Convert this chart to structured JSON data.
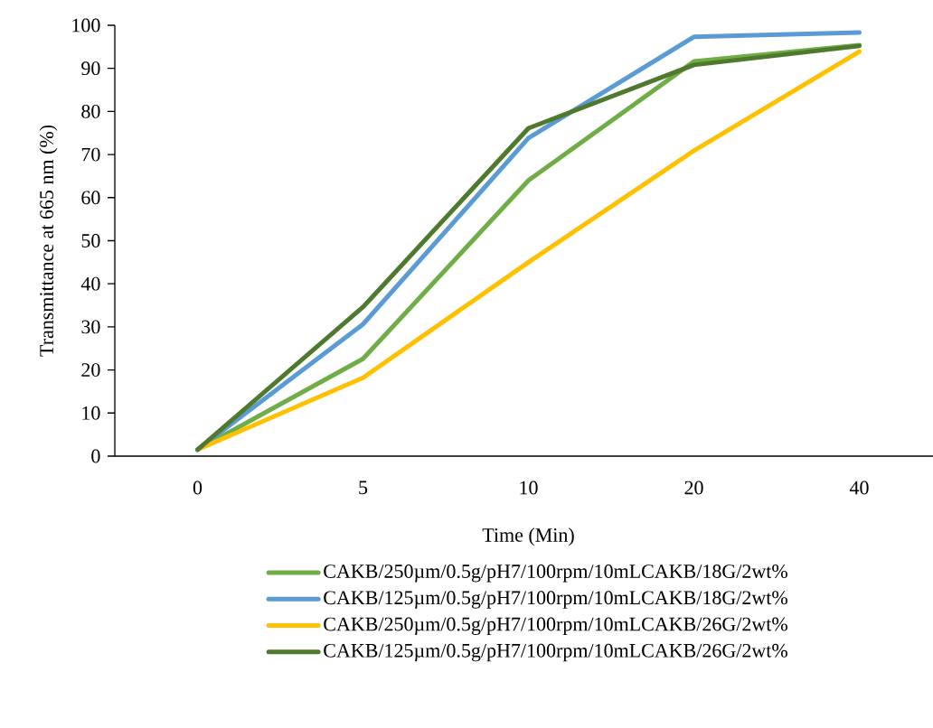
{
  "chart_data": {
    "type": "line",
    "xlabel": "Time (Min)",
    "ylabel": "Transmittance at 665 nm (%)",
    "categories": [
      "0",
      "5",
      "10",
      "20",
      "40"
    ],
    "series": [
      {
        "name": "CAKB/250µm/0.5g/pH7/100rpm/10mLCAKB/18G/2wt%",
        "color": "#70ad47",
        "values": [
          1.5,
          22.6,
          64,
          91.6,
          95.4
        ]
      },
      {
        "name": "CAKB/125µm/0.5g/pH7/100rpm/10mLCAKB/18G/2wt%",
        "color": "#5b9bd5",
        "values": [
          1.5,
          30.6,
          73.8,
          97.3,
          98.3
        ]
      },
      {
        "name": "CAKB/250µm/0.5g/pH7/100rpm/10mLCAKB/26G/2wt%",
        "color": "#ffc000",
        "values": [
          1.5,
          18.2,
          45,
          70.9,
          93.9
        ]
      },
      {
        "name": "CAKB/125µm/0.5g/pH7/100rpm/10mLCAKB/26G/2wt%",
        "color": "#4f7a2d",
        "values": [
          1.5,
          34.6,
          76.1,
          90.8,
          95.2
        ]
      }
    ],
    "ylim": [
      0,
      100
    ],
    "yticks": [
      0,
      10,
      20,
      30,
      40,
      50,
      60,
      70,
      80,
      90,
      100
    ],
    "grid": false,
    "legend": "bottom",
    "marker": "none",
    "line_style": "solid"
  }
}
